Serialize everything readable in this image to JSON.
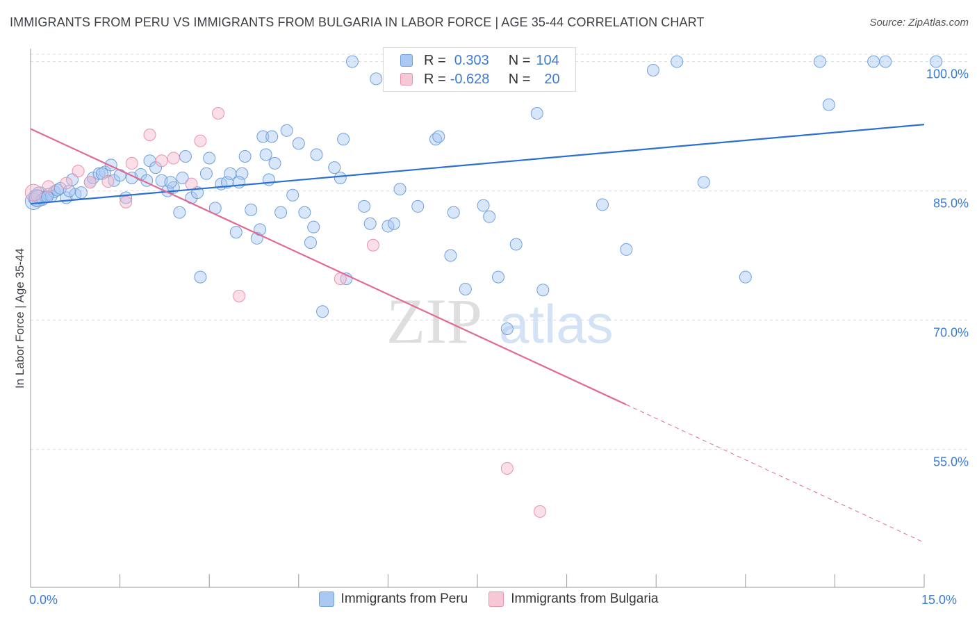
{
  "title": "IMMIGRANTS FROM PERU VS IMMIGRANTS FROM BULGARIA IN LABOR FORCE | AGE 35-44 CORRELATION CHART",
  "source": "Source: ZipAtlas.com",
  "watermark": {
    "zip": "ZIP",
    "atlas": "atlas"
  },
  "legend": {
    "peru": {
      "r_label": "R =",
      "r_value": "0.303",
      "n_label": "N =",
      "n_value": "104"
    },
    "bulgaria": {
      "r_label": "R =",
      "r_value": "-0.628",
      "n_label": "N =",
      "n_value": "20"
    }
  },
  "colors": {
    "peru_fill": "#a9c8f2",
    "peru_stroke": "#6f9fdc",
    "peru_line": "#2a6fd1",
    "bulgaria_fill": "#f6b8cb",
    "bulgaria_stroke": "#ea92ae",
    "bulgaria_line": "#e06a93",
    "tick_text": "#3b7bd4",
    "grid": "#dddddd"
  },
  "chart_data": {
    "type": "scatter",
    "title": "IMMIGRANTS FROM PERU VS IMMIGRANTS FROM BULGARIA IN LABOR FORCE | AGE 35-44 CORRELATION CHART",
    "xlabel": "",
    "ylabel": "In Labor Force | Age 35-44",
    "xlim": [
      0,
      15
    ],
    "ylim": [
      39,
      101.5
    ],
    "x_tick_labels": [
      "0.0%",
      "15.0%"
    ],
    "y_ticks": [
      100,
      85,
      70,
      55
    ],
    "y_tick_labels": [
      "100.0%",
      "85.0%",
      "70.0%",
      "55.0%"
    ],
    "grid": true,
    "legend_position": "top-center",
    "series": [
      {
        "name": "Immigrants from Peru",
        "points": [
          [
            0.05,
            83.8
          ],
          [
            0.1,
            84.2
          ],
          [
            0.15,
            84.5
          ],
          [
            0.2,
            84.0
          ],
          [
            0.25,
            84.3
          ],
          [
            0.3,
            84.6
          ],
          [
            0.35,
            84.4
          ],
          [
            0.4,
            84.9
          ],
          [
            0.45,
            85.1
          ],
          [
            0.5,
            85.3
          ],
          [
            0.6,
            84.2
          ],
          [
            0.7,
            86.3
          ],
          [
            0.75,
            84.6
          ],
          [
            0.85,
            84.8
          ],
          [
            1.0,
            86.0
          ],
          [
            1.05,
            86.5
          ],
          [
            1.15,
            87.0
          ],
          [
            1.25,
            87.2
          ],
          [
            1.35,
            88.0
          ],
          [
            1.4,
            86.2
          ],
          [
            1.5,
            86.8
          ],
          [
            1.6,
            84.2
          ],
          [
            1.7,
            86.5
          ],
          [
            1.85,
            86.9
          ],
          [
            1.95,
            86.2
          ],
          [
            2.0,
            88.5
          ],
          [
            2.1,
            87.7
          ],
          [
            2.2,
            86.2
          ],
          [
            2.3,
            85.0
          ],
          [
            2.4,
            85.4
          ],
          [
            2.5,
            82.5
          ],
          [
            2.55,
            86.5
          ],
          [
            2.6,
            89.0
          ],
          [
            2.7,
            84.2
          ],
          [
            2.8,
            84.8
          ],
          [
            2.85,
            75.0
          ],
          [
            2.95,
            87.0
          ],
          [
            3.0,
            88.8
          ],
          [
            3.1,
            83.0
          ],
          [
            3.2,
            85.8
          ],
          [
            3.3,
            86.0
          ],
          [
            3.35,
            87.0
          ],
          [
            3.45,
            80.2
          ],
          [
            3.55,
            87.0
          ],
          [
            3.6,
            89.0
          ],
          [
            3.7,
            82.8
          ],
          [
            3.8,
            79.5
          ],
          [
            3.85,
            80.5
          ],
          [
            3.9,
            91.3
          ],
          [
            3.95,
            89.2
          ],
          [
            4.05,
            91.3
          ],
          [
            4.1,
            88.2
          ],
          [
            4.2,
            82.5
          ],
          [
            4.3,
            92.0
          ],
          [
            4.4,
            84.5
          ],
          [
            4.5,
            90.5
          ],
          [
            4.6,
            82.5
          ],
          [
            4.7,
            79.0
          ],
          [
            4.75,
            80.8
          ],
          [
            4.8,
            89.2
          ],
          [
            4.9,
            71.0
          ],
          [
            5.1,
            87.7
          ],
          [
            5.2,
            86.5
          ],
          [
            5.25,
            91.0
          ],
          [
            5.3,
            74.8
          ],
          [
            5.4,
            100.0
          ],
          [
            5.6,
            83.2
          ],
          [
            5.7,
            81.2
          ],
          [
            5.8,
            98.0
          ],
          [
            6.0,
            80.9
          ],
          [
            6.1,
            81.2
          ],
          [
            6.2,
            85.2
          ],
          [
            6.5,
            83.2
          ],
          [
            6.8,
            91.0
          ],
          [
            6.85,
            91.3
          ],
          [
            7.05,
            77.5
          ],
          [
            7.1,
            82.5
          ],
          [
            7.3,
            73.6
          ],
          [
            7.6,
            83.3
          ],
          [
            7.7,
            82.0
          ],
          [
            7.85,
            75.0
          ],
          [
            8.0,
            69.0
          ],
          [
            8.15,
            78.8
          ],
          [
            8.5,
            94.0
          ],
          [
            8.6,
            73.5
          ],
          [
            8.8,
            99.8
          ],
          [
            9.0,
            100.0
          ],
          [
            9.6,
            83.4
          ],
          [
            10.0,
            78.2
          ],
          [
            10.45,
            99.0
          ],
          [
            10.85,
            100.0
          ],
          [
            11.3,
            86.0
          ],
          [
            12.0,
            75.0
          ],
          [
            13.25,
            100.0
          ],
          [
            13.4,
            95.0
          ],
          [
            14.15,
            100.0
          ],
          [
            14.35,
            100.0
          ],
          [
            15.2,
            100.0
          ],
          [
            0.65,
            85.0
          ],
          [
            1.2,
            87.0
          ],
          [
            2.35,
            86.0
          ],
          [
            3.5,
            86.0
          ],
          [
            4.0,
            86.3
          ],
          [
            0.12,
            84.1
          ],
          [
            0.28,
            84.3
          ]
        ],
        "trend": {
          "x": [
            0,
            15
          ],
          "y": [
            83.5,
            92.7
          ]
        }
      },
      {
        "name": "Immigrants from Bulgaria",
        "points": [
          [
            0.05,
            84.8
          ],
          [
            0.3,
            85.5
          ],
          [
            0.6,
            85.9
          ],
          [
            0.8,
            87.3
          ],
          [
            1.0,
            86.0
          ],
          [
            1.3,
            86.1
          ],
          [
            1.6,
            83.7
          ],
          [
            1.7,
            88.2
          ],
          [
            2.0,
            91.5
          ],
          [
            2.2,
            88.5
          ],
          [
            2.4,
            88.8
          ],
          [
            2.7,
            85.8
          ],
          [
            2.85,
            90.8
          ],
          [
            3.15,
            94.0
          ],
          [
            3.5,
            72.8
          ],
          [
            5.2,
            74.8
          ],
          [
            5.75,
            78.7
          ],
          [
            7.5,
            100.0
          ],
          [
            8.0,
            52.8
          ],
          [
            8.55,
            47.8
          ]
        ],
        "trend": {
          "x": [
            0,
            10
          ],
          "y": [
            92.2,
            60.2
          ]
        },
        "trend_dashed": {
          "x": [
            10,
            15
          ],
          "y": [
            60.2,
            44.2
          ]
        }
      }
    ]
  },
  "bottom_legend": {
    "peru": "Immigrants from Peru",
    "bulgaria": "Immigrants from Bulgaria"
  }
}
